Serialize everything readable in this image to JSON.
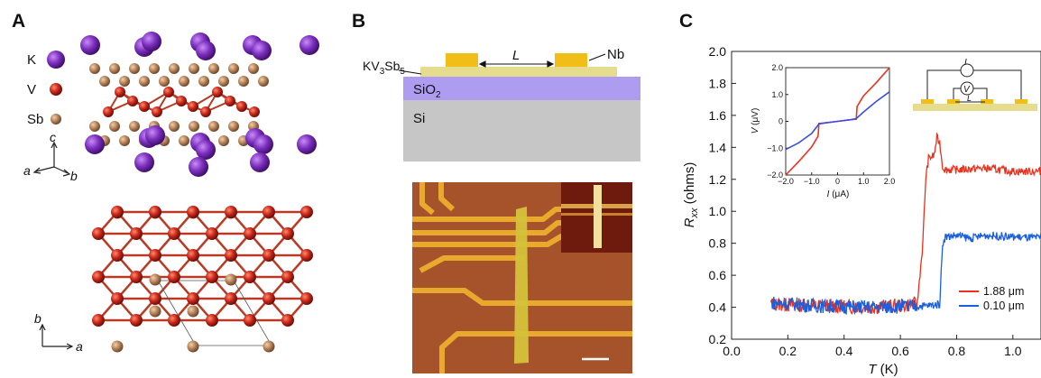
{
  "panel_a": {
    "label": "A",
    "legend": [
      {
        "label": "K",
        "color": "#7b2fbf"
      },
      {
        "label": "V",
        "color": "#c8261a"
      },
      {
        "label": "Sb",
        "color": "#b5825a"
      }
    ],
    "axes_side": {
      "c": "c",
      "a": "a",
      "b": "b"
    },
    "axes_top": {
      "b": "b",
      "a": "a"
    }
  },
  "panel_b": {
    "label": "B",
    "sample_label": "KV",
    "sample_sub1": "3",
    "sample_mid": "Sb",
    "sample_sub2": "5",
    "length_label": "L",
    "contact_label": "Nb",
    "oxide_label": "SiO",
    "oxide_sub": "2",
    "substrate_label": "Si",
    "colors": {
      "nb": "#f0be16",
      "flake": "#e5dc8e",
      "sio2": "#ad9cf0",
      "si": "#c6c6c6",
      "chip": "#a6532c",
      "wire": "#e8a92d"
    }
  },
  "panel_c": {
    "label": "C",
    "inset_schematic": {
      "current": "I",
      "voltage": "V",
      "length": "L"
    }
  },
  "chart_data": [
    {
      "type": "line",
      "title": "",
      "xlabel": "T (K)",
      "ylabel_main": "R",
      "ylabel_sub": "xx",
      "ylabel_unit": " (ohms)",
      "xlim": [
        0.0,
        1.1
      ],
      "ylim": [
        0.2,
        2.0
      ],
      "xticks": [
        "0.0",
        "0.2",
        "0.4",
        "0.6",
        "0.8",
        "1.0"
      ],
      "yticks": [
        "0.2",
        "0.4",
        "0.6",
        "0.8",
        "1.0",
        "1.2",
        "1.4",
        "1.6",
        "1.8",
        "2.0"
      ],
      "legend_position": "bottom-right",
      "series": [
        {
          "name": "1.88 μm",
          "color": "#e8321e",
          "x": [
            0.14,
            0.3,
            0.5,
            0.6,
            0.66,
            0.68,
            0.69,
            0.7,
            0.72,
            0.73,
            0.74,
            0.75,
            0.76,
            0.8,
            0.9,
            1.0,
            1.1
          ],
          "y": [
            0.42,
            0.41,
            0.4,
            0.41,
            0.42,
            0.8,
            1.2,
            1.33,
            1.35,
            1.46,
            1.43,
            1.28,
            1.26,
            1.26,
            1.27,
            1.25,
            1.25
          ]
        },
        {
          "name": "0.10 μm",
          "color": "#1a5fe0",
          "x": [
            0.14,
            0.3,
            0.5,
            0.7,
            0.74,
            0.75,
            0.76,
            0.8,
            0.85,
            0.9,
            1.0,
            1.1
          ],
          "y": [
            0.43,
            0.41,
            0.4,
            0.41,
            0.42,
            0.8,
            0.84,
            0.85,
            0.83,
            0.85,
            0.84,
            0.83
          ]
        }
      ]
    },
    {
      "type": "line",
      "title": "",
      "xlabel": "I (μA)",
      "ylabel": "V (μV)",
      "xlim": [
        -2.0,
        2.0
      ],
      "ylim": [
        -2.0,
        2.0
      ],
      "xticks": [
        "−2.0",
        "−1.0",
        "0",
        "1.0",
        "2.0"
      ],
      "yticks": [
        "−2.0",
        "−1.0",
        "0",
        "1.0",
        "2.0"
      ],
      "series": [
        {
          "color": "#e8321e",
          "x": [
            -2.0,
            -1.5,
            -1.0,
            -0.75,
            -0.72,
            -0.5,
            0.0,
            0.5,
            0.72,
            0.75,
            1.0,
            1.5,
            2.0
          ],
          "y": [
            -2.0,
            -1.5,
            -0.95,
            -0.55,
            -0.08,
            -0.06,
            0.0,
            0.06,
            0.08,
            0.55,
            0.95,
            1.45,
            2.0
          ]
        },
        {
          "color": "#3a4fe0",
          "x": [
            -2.0,
            -1.5,
            -1.0,
            -0.72,
            -0.5,
            0.0,
            0.5,
            0.72,
            1.0,
            1.5,
            2.0
          ],
          "y": [
            -1.05,
            -0.8,
            -0.45,
            -0.1,
            -0.06,
            0.0,
            0.06,
            0.1,
            0.35,
            0.75,
            1.1
          ]
        }
      ]
    }
  ]
}
